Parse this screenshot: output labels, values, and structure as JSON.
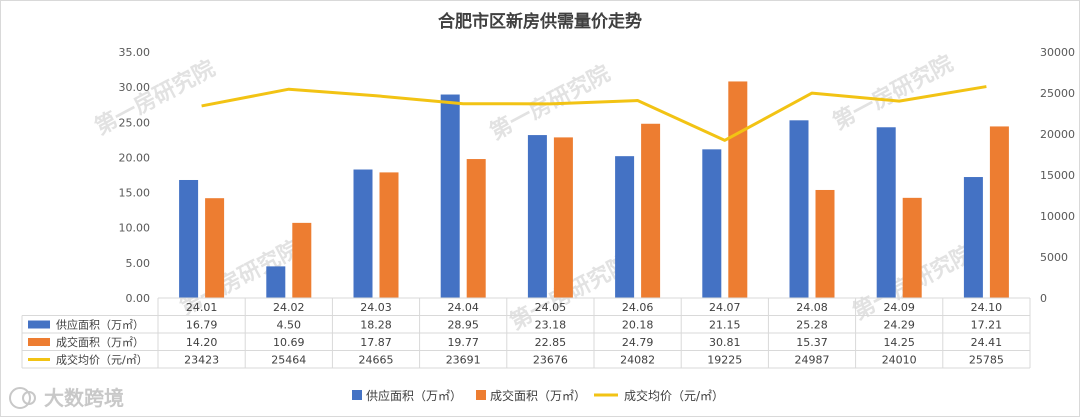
{
  "chart_data": {
    "type": "bar",
    "title": "合肥市区新房供需量价走势",
    "categories": [
      "24.01",
      "24.02",
      "24.03",
      "24.04",
      "24.05",
      "24.06",
      "24.07",
      "24.08",
      "24.09",
      "24.10"
    ],
    "series": [
      {
        "name": "供应面积（万㎡）",
        "type": "bar",
        "axis": "left",
        "color": "#4472C4",
        "values": [
          16.79,
          4.5,
          18.28,
          28.95,
          23.18,
          20.18,
          21.15,
          25.28,
          24.29,
          17.21
        ]
      },
      {
        "name": "成交面积（万㎡）",
        "type": "bar",
        "axis": "left",
        "color": "#ED7D31",
        "values": [
          14.2,
          10.69,
          17.87,
          19.77,
          22.85,
          24.79,
          30.81,
          15.37,
          14.25,
          24.41
        ]
      },
      {
        "name": "成交均价（元/㎡）",
        "type": "line",
        "axis": "right",
        "color": "#F2C314",
        "values": [
          23423,
          25464,
          24665,
          23691,
          23676,
          24082,
          19225,
          24987,
          24010,
          25785
        ]
      }
    ],
    "table_values": [
      [
        "16.79",
        "4.50",
        "18.28",
        "28.95",
        "23.18",
        "20.18",
        "21.15",
        "25.28",
        "24.29",
        "17.21"
      ],
      [
        "14.20",
        "10.69",
        "17.87",
        "19.77",
        "22.85",
        "24.79",
        "30.81",
        "15.37",
        "14.25",
        "24.41"
      ],
      [
        "23423",
        "25464",
        "24665",
        "23691",
        "23676",
        "24082",
        "19225",
        "24987",
        "24010",
        "25785"
      ]
    ],
    "y_left": {
      "min": 0,
      "max": 35,
      "step": 5,
      "ticks": [
        "0.00",
        "5.00",
        "10.00",
        "15.00",
        "20.00",
        "25.00",
        "30.00",
        "35.00"
      ]
    },
    "y_right": {
      "min": 0,
      "max": 30000,
      "step": 5000,
      "ticks": [
        "0",
        "5000",
        "10000",
        "15000",
        "20000",
        "25000",
        "30000"
      ]
    },
    "legend": {
      "position": "bottom"
    },
    "grid": false,
    "data_table": true
  },
  "watermark": "第一房研究院",
  "brand": "大数跨境"
}
